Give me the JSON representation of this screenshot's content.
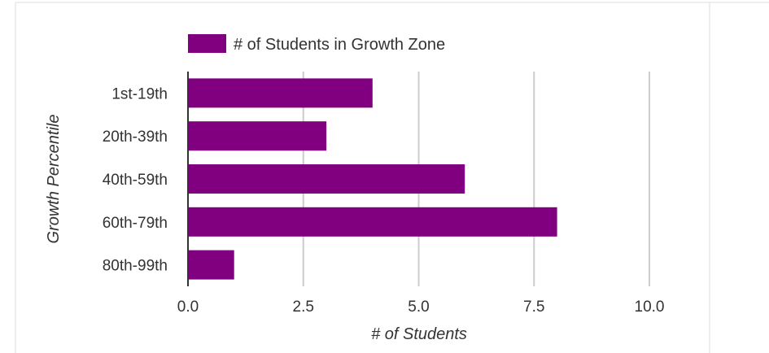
{
  "chart_data": {
    "type": "bar",
    "orientation": "horizontal",
    "categories": [
      "1st-19th",
      "20th-39th",
      "40th-59th",
      "60th-79th",
      "80th-99th"
    ],
    "series": [
      {
        "name": "# of Students in Growth Zone",
        "values": [
          4,
          3,
          6,
          8,
          1
        ],
        "color": "#800080"
      }
    ],
    "xlabel": "# of Students",
    "ylabel": "Growth Percentile",
    "xlim": [
      0,
      10
    ],
    "x_ticks": [
      "0.0",
      "2.5",
      "5.0",
      "7.5",
      "10.0"
    ],
    "x_tick_values": [
      0,
      2.5,
      5,
      7.5,
      10
    ],
    "grid": "vertical",
    "legend_position": "top-left",
    "colors": {
      "bar": "#800080",
      "grid": "#cccccc",
      "axis": "#333333",
      "text": "#333333",
      "border": "#dddddd"
    }
  }
}
